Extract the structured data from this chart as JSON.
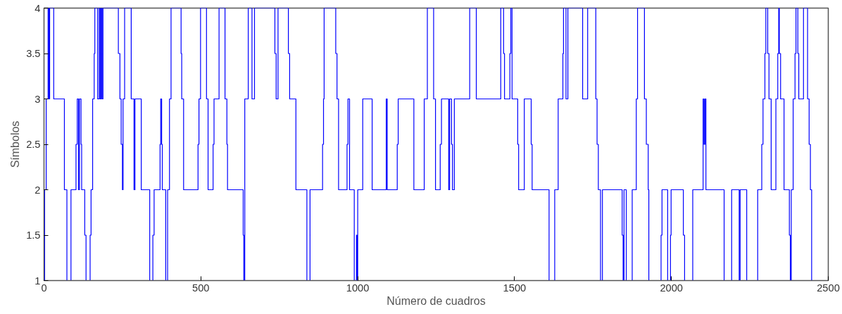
{
  "chart_data": {
    "type": "step",
    "xlabel": "Número de cuadros",
    "ylabel": "Símbolos",
    "xlim": [
      0,
      2500
    ],
    "xticks": [
      0,
      500,
      1000,
      1500,
      2000,
      2500
    ],
    "ylim": [
      1,
      4
    ],
    "yticks": [
      1,
      1.5,
      2,
      2.5,
      3,
      3.5,
      4
    ],
    "grid": false,
    "series": [
      {
        "color": "#0000ff",
        "x": [
          0,
          2,
          7,
          13,
          16,
          18,
          31,
          65,
          73,
          86,
          102,
          106,
          110,
          113,
          118,
          120,
          130,
          134,
          147,
          150,
          155,
          160,
          162,
          171,
          176,
          179,
          182,
          185,
          188,
          237,
          242,
          246,
          250,
          252,
          257,
          278,
          287,
          290,
          310,
          337,
          347,
          351,
          370,
          372,
          375,
          377,
          388,
          394,
          400,
          405,
          437,
          439,
          445,
          491,
          494,
          499,
          518,
          523,
          539,
          542,
          558,
          577,
          583,
          585,
          635,
          637,
          640,
          651,
          663,
          671,
          736,
          740,
          746,
          779,
          783,
          803,
          838,
          848,
          888,
          891,
          893,
          930,
          934,
          939,
          966,
          969,
          974,
          989,
          996,
          998,
          1000,
          1016,
          1046,
          1091,
          1094,
          1126,
          1129,
          1179,
          1212,
          1222,
          1242,
          1248,
          1263,
          1267,
          1290,
          1293,
          1299,
          1302,
          1308,
          1357,
          1378,
          1456,
          1465,
          1468,
          1485,
          1488,
          1492,
          1510,
          1513,
          1531,
          1553,
          1556,
          1610,
          1628,
          1639,
          1654,
          1656,
          1664,
          1670,
          1717,
          1733,
          1759,
          1763,
          1767,
          1774,
          1780,
          1843,
          1846,
          1849,
          1856,
          1875,
          1888,
          1892,
          1914,
          1920,
          1926,
          1928,
          1967,
          1970,
          1988,
          1997,
          1999,
          2038,
          2042,
          2068,
          2101,
          2104,
          2107,
          2110,
          2168,
          2192,
          2216,
          2219,
          2240,
          2275,
          2288,
          2292,
          2298,
          2301,
          2307,
          2311,
          2318,
          2333,
          2339,
          2342,
          2344,
          2348,
          2359,
          2376,
          2379,
          2382,
          2388,
          2394,
          2397,
          2403,
          2406,
          2421,
          2434,
          2439,
          2443,
          2447,
          2450
        ],
        "values": [
          1,
          2,
          3,
          4,
          3,
          4,
          3,
          2,
          1,
          2,
          2.5,
          3,
          2,
          3,
          2.5,
          2,
          1.5,
          1,
          1.5,
          2,
          3,
          3.5,
          4,
          3,
          4,
          3,
          4,
          3,
          4,
          3.5,
          3,
          2.5,
          2,
          3,
          4,
          3,
          2,
          3,
          2,
          1,
          1.5,
          2,
          2.5,
          3,
          2.5,
          2,
          1,
          2,
          3,
          4,
          3.5,
          3,
          2,
          2.5,
          3,
          4,
          3,
          2,
          2.5,
          3,
          4,
          3,
          2.5,
          2,
          1.5,
          1,
          3,
          4,
          3,
          4,
          3.5,
          3,
          4,
          3.5,
          3,
          2,
          1,
          2,
          2.5,
          3,
          4,
          3.5,
          3,
          2,
          2.5,
          3,
          2,
          1,
          1.5,
          1,
          2,
          3,
          2,
          3,
          2,
          2.5,
          3,
          2,
          3,
          4,
          3,
          2,
          2.5,
          3,
          2,
          3,
          2.5,
          2,
          3,
          4,
          3,
          4,
          3.5,
          3,
          3.5,
          4,
          3,
          2.5,
          2,
          3,
          2.5,
          2,
          1,
          2,
          3,
          3.5,
          4,
          3,
          4,
          3,
          4,
          3,
          2.5,
          2,
          1,
          2,
          1.5,
          1,
          2,
          1,
          2,
          3,
          4,
          3,
          2.5,
          2,
          1,
          1.5,
          2,
          1,
          1.5,
          2,
          1.5,
          1,
          2,
          3,
          2.5,
          3,
          2,
          1,
          2,
          1,
          2,
          1,
          2,
          2.5,
          3,
          3.5,
          4,
          3.5,
          3,
          2,
          3,
          3.5,
          4,
          3.5,
          3,
          2,
          1.5,
          1,
          2,
          3,
          3.5,
          4,
          3.5,
          3,
          4,
          3,
          2.5,
          2,
          1,
          1
        ]
      }
    ]
  }
}
